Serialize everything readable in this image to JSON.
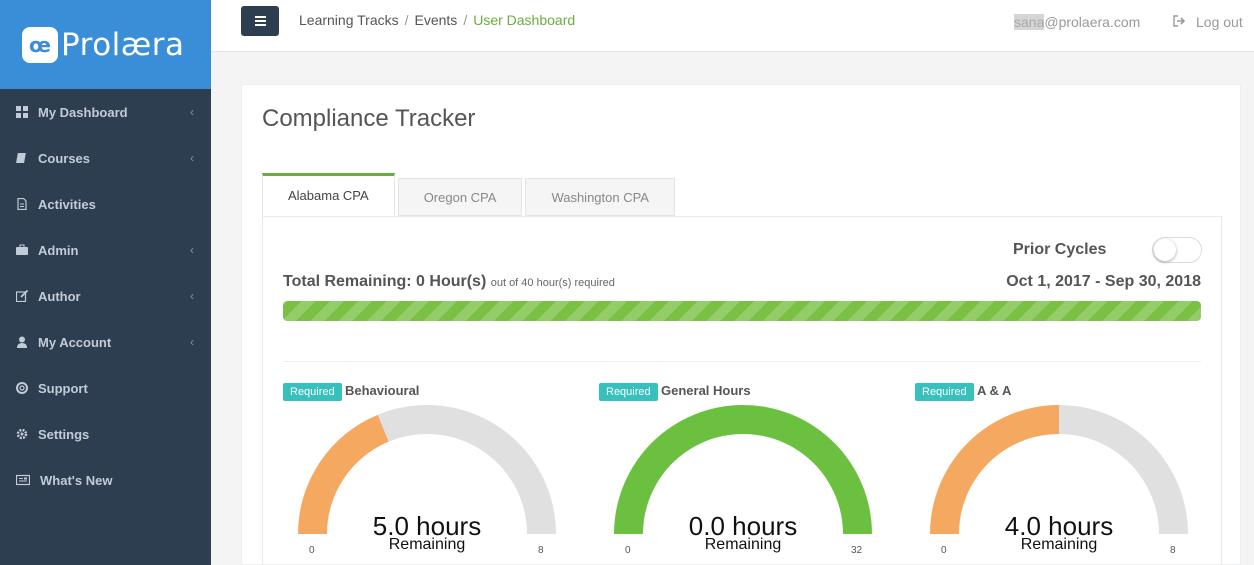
{
  "app": {
    "logo_mark": "œ",
    "logo_text": "Prolæra"
  },
  "sidebar": {
    "items": [
      {
        "label": "My Dashboard",
        "icon": "dashboard-icon",
        "caret": "‹"
      },
      {
        "label": "Courses",
        "icon": "book-icon",
        "caret": "‹"
      },
      {
        "label": "Activities",
        "icon": "file-icon",
        "caret": ""
      },
      {
        "label": "Admin",
        "icon": "briefcase-icon",
        "caret": "‹"
      },
      {
        "label": "Author",
        "icon": "edit-icon",
        "caret": "‹"
      },
      {
        "label": "My Account",
        "icon": "user-icon",
        "caret": "‹"
      },
      {
        "label": "Support",
        "icon": "life-ring-icon",
        "caret": ""
      },
      {
        "label": "Settings",
        "icon": "gear-icon",
        "caret": ""
      },
      {
        "label": "What's New",
        "icon": "newspaper-icon",
        "caret": ""
      }
    ]
  },
  "topbar": {
    "breadcrumb": [
      "Learning Tracks",
      "Events",
      "User Dashboard"
    ],
    "separator": "/",
    "user_highlight": "sana",
    "user_rest": "@prolaera.com",
    "logout": "Log out"
  },
  "main": {
    "title": "Compliance Tracker",
    "tabs": [
      {
        "label": "Alabama CPA",
        "active": true
      },
      {
        "label": "Oregon CPA",
        "active": false
      },
      {
        "label": "Washington CPA",
        "active": false
      }
    ],
    "prior_cycles_label": "Prior Cycles",
    "prior_cycles_on": false,
    "total_label": "Total Remaining: 0 Hour(s)",
    "total_sub": "out of 40 hour(s) required",
    "date_range": "Oct 1, 2017 - Sep 30, 2018",
    "progress_fraction": 1.0,
    "gauges": [
      {
        "badge": "Required",
        "title": "Behavioural",
        "hours": "5.0 hours",
        "remaining": "Remaining",
        "min": "0",
        "max": "8",
        "completed": 3,
        "total": 8,
        "color": "#f5a85f"
      },
      {
        "badge": "Required",
        "title": "General Hours",
        "hours": "0.0 hours",
        "remaining": "Remaining",
        "min": "0",
        "max": "32",
        "completed": 32,
        "total": 32,
        "color": "#6cc040"
      },
      {
        "badge": "Required",
        "title": "A & A",
        "hours": "4.0 hours",
        "remaining": "Remaining",
        "min": "0",
        "max": "8",
        "completed": 4,
        "total": 8,
        "color": "#f5a85f"
      }
    ]
  },
  "colors": {
    "sidebar_bg": "#2d3e50",
    "logo_bg": "#3a8ed8",
    "accent_green": "#6aae3f",
    "badge": "#37c1bd",
    "gauge_track": "#e0e0e0"
  }
}
